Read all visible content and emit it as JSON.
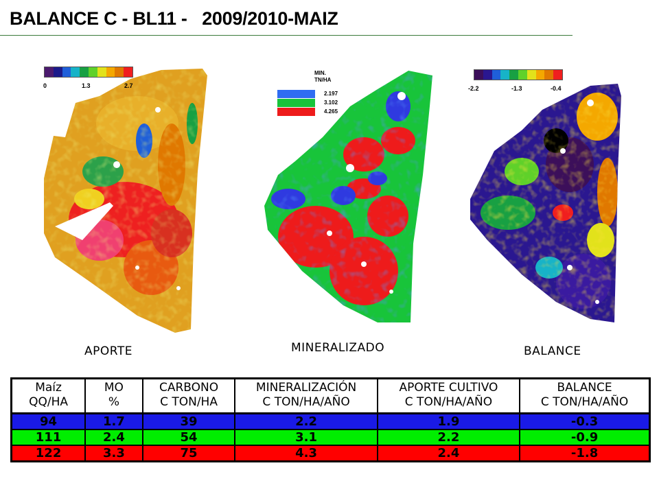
{
  "title": "BALANCE C - BL11 -   2009/2010-MAIZ",
  "maps": [
    {
      "id": "aporte",
      "label": "APORTE",
      "legend": {
        "colors": [
          "#4b1a6e",
          "#1b1a8a",
          "#1f5fd9",
          "#17b3c8",
          "#18a043",
          "#5fd12a",
          "#e2e21b",
          "#f4a800",
          "#e07800",
          "#f01f1f"
        ],
        "ticks": [
          "0",
          "1.3",
          "2.7"
        ]
      }
    },
    {
      "id": "mineralizado",
      "label": "MINERALIZADO",
      "legend": {
        "header_line1": "MIN.",
        "header_line2": "TN/HA",
        "items": [
          {
            "color": "#2f6cf2",
            "value": "2.197"
          },
          {
            "color": "#18c43a",
            "value": "3.102"
          },
          {
            "color": "#ee1b1b",
            "value": "4.265"
          }
        ]
      }
    },
    {
      "id": "balance",
      "label": "BALANCE",
      "legend": {
        "colors": [
          "#3c0f5a",
          "#2a1790",
          "#1f5fd9",
          "#17b3c8",
          "#18a043",
          "#5fd12a",
          "#e2e21b",
          "#f4a800",
          "#e07800",
          "#f01f1f"
        ],
        "ticks": [
          "-2.2",
          "-1.3",
          "-0.4"
        ]
      }
    }
  ],
  "table": {
    "headers": [
      [
        "Maíz",
        "QQ/HA"
      ],
      [
        "MO",
        "%"
      ],
      [
        "CARBONO",
        "C TON/HA"
      ],
      [
        "MINERALIZACIÓN",
        "C TON/HA/AÑO"
      ],
      [
        "APORTE CULTIVO",
        "C TON/HA/AÑO"
      ],
      [
        "BALANCE",
        "C TON/HA/AÑO"
      ]
    ],
    "rows": [
      {
        "color": "#1a1ae6",
        "cells": [
          "94",
          "1.7",
          "39",
          "2.2",
          "1.9",
          "-0.3"
        ]
      },
      {
        "color": "#00ee00",
        "cells": [
          "111",
          "2.4",
          "54",
          "3.1",
          "2.2",
          "-0.9"
        ]
      },
      {
        "color": "#ff0000",
        "cells": [
          "122",
          "3.3",
          "75",
          "4.3",
          "2.4",
          "-1.8"
        ]
      }
    ]
  }
}
